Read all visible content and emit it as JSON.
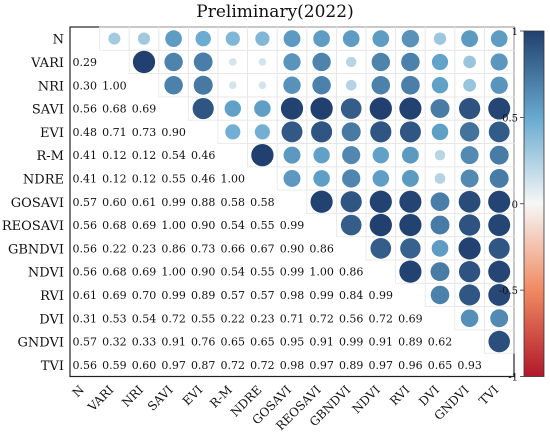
{
  "chart_data": {
    "type": "heatmap",
    "title": "Preliminary(2022)",
    "variables": [
      "N",
      "VARI",
      "NRI",
      "SAVI",
      "EVI",
      "R-M",
      "NDRE",
      "GOSAVI",
      "REOSAVI",
      "GBNDVI",
      "NDVI",
      "RVI",
      "DVI",
      "GNDVI",
      "TVI"
    ],
    "matrix": [
      [
        1.0,
        0.29,
        0.3,
        0.56,
        0.48,
        0.41,
        0.41,
        0.57,
        0.56,
        0.56,
        0.56,
        0.61,
        0.31,
        0.57,
        0.56
      ],
      [
        0.29,
        1.0,
        1.0,
        0.68,
        0.71,
        0.12,
        0.12,
        0.6,
        0.68,
        0.22,
        0.68,
        0.69,
        0.53,
        0.32,
        0.59
      ],
      [
        0.3,
        1.0,
        1.0,
        0.69,
        0.73,
        0.12,
        0.12,
        0.61,
        0.69,
        0.23,
        0.69,
        0.7,
        0.54,
        0.33,
        0.6
      ],
      [
        0.56,
        0.68,
        0.69,
        1.0,
        0.9,
        0.54,
        0.55,
        0.99,
        1.0,
        0.86,
        1.0,
        0.99,
        0.72,
        0.91,
        0.97
      ],
      [
        0.48,
        0.71,
        0.73,
        0.9,
        1.0,
        0.46,
        0.46,
        0.88,
        0.9,
        0.73,
        0.9,
        0.89,
        0.55,
        0.76,
        0.87
      ],
      [
        0.41,
        0.12,
        0.12,
        0.54,
        0.46,
        1.0,
        1.0,
        0.58,
        0.54,
        0.66,
        0.54,
        0.57,
        0.22,
        0.65,
        0.72
      ],
      [
        0.41,
        0.12,
        0.12,
        0.55,
        0.46,
        1.0,
        1.0,
        0.58,
        0.55,
        0.67,
        0.55,
        0.57,
        0.23,
        0.65,
        0.72
      ],
      [
        0.57,
        0.6,
        0.61,
        0.99,
        0.88,
        0.58,
        0.58,
        1.0,
        0.99,
        0.9,
        0.99,
        0.98,
        0.71,
        0.95,
        0.98
      ],
      [
        0.56,
        0.68,
        0.69,
        1.0,
        0.9,
        0.54,
        0.55,
        0.99,
        1.0,
        0.86,
        1.0,
        0.99,
        0.72,
        0.91,
        0.97
      ],
      [
        0.56,
        0.22,
        0.23,
        0.86,
        0.73,
        0.66,
        0.67,
        0.9,
        0.86,
        1.0,
        0.86,
        0.84,
        0.56,
        0.99,
        0.89
      ],
      [
        0.56,
        0.68,
        0.69,
        1.0,
        0.9,
        0.54,
        0.55,
        0.99,
        1.0,
        0.86,
        1.0,
        0.99,
        0.72,
        0.91,
        0.97
      ],
      [
        0.61,
        0.69,
        0.7,
        0.99,
        0.89,
        0.57,
        0.57,
        0.98,
        0.99,
        0.84,
        0.99,
        1.0,
        0.69,
        0.89,
        0.96
      ],
      [
        0.31,
        0.53,
        0.54,
        0.72,
        0.55,
        0.22,
        0.23,
        0.71,
        0.72,
        0.56,
        0.72,
        0.69,
        1.0,
        0.62,
        0.65
      ],
      [
        0.57,
        0.32,
        0.33,
        0.91,
        0.76,
        0.65,
        0.65,
        0.95,
        0.91,
        0.99,
        0.91,
        0.89,
        0.62,
        1.0,
        0.93
      ],
      [
        0.56,
        0.59,
        0.6,
        0.97,
        0.87,
        0.72,
        0.72,
        0.98,
        0.97,
        0.89,
        0.97,
        0.96,
        0.65,
        0.93,
        1.0
      ]
    ],
    "lower_triangle": "numbers",
    "upper_triangle": "circles",
    "colorbar": {
      "ticks": [
        "1",
        "0.5",
        "0",
        "-0.5",
        "-1"
      ],
      "range": [
        -1,
        1
      ]
    },
    "colors": {
      "negative": "#b2182b",
      "zero": "#f7f7f7",
      "positive": "#21406f"
    },
    "grid": true
  }
}
